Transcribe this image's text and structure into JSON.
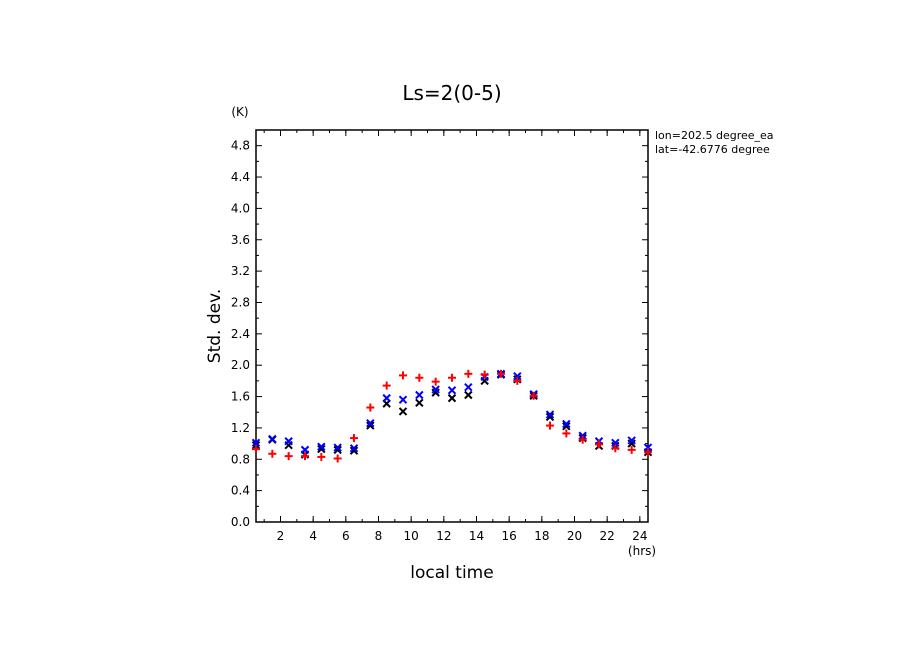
{
  "chart_data": {
    "type": "scatter",
    "title": "Ls=2(0-5)",
    "xlabel": "local time",
    "ylabel": "Std. dev.",
    "x_unit": "(hrs)",
    "y_unit": "(K)",
    "xlim": [
      0.5,
      24.5
    ],
    "ylim": [
      0.0,
      5.0
    ],
    "x_ticks": [
      2,
      4,
      6,
      8,
      10,
      12,
      14,
      16,
      18,
      20,
      22,
      24
    ],
    "y_ticks": [
      0.0,
      0.4,
      0.8,
      1.2,
      1.6,
      2.0,
      2.4,
      2.8,
      3.2,
      3.6,
      4.0,
      4.4,
      4.8
    ],
    "annotations": [
      "lon=202.5 degree_ea",
      "lat=-42.6776 degree"
    ],
    "series": [
      {
        "marker": "x",
        "color": "#000000",
        "x": [
          0.5,
          1.5,
          2.5,
          3.5,
          4.5,
          5.5,
          6.5,
          7.5,
          8.5,
          9.5,
          10.5,
          11.5,
          12.5,
          13.5,
          14.5,
          15.5,
          16.5,
          17.5,
          18.5,
          19.5,
          20.5,
          21.5,
          22.5,
          23.5,
          24.5
        ],
        "y": [
          0.98,
          1.05,
          0.98,
          0.86,
          0.93,
          0.92,
          0.91,
          1.23,
          1.51,
          1.41,
          1.52,
          1.65,
          1.58,
          1.62,
          1.8,
          1.88,
          1.82,
          1.61,
          1.34,
          1.22,
          1.07,
          0.97,
          0.97,
          1.0,
          0.89
        ]
      },
      {
        "marker": "x",
        "color": "#0000ff",
        "x": [
          0.5,
          1.5,
          2.5,
          3.5,
          4.5,
          5.5,
          6.5,
          7.5,
          8.5,
          9.5,
          10.5,
          11.5,
          12.5,
          13.5,
          14.5,
          15.5,
          16.5,
          17.5,
          18.5,
          19.5,
          20.5,
          21.5,
          22.5,
          23.5,
          24.5
        ],
        "y": [
          1.01,
          1.06,
          1.03,
          0.92,
          0.96,
          0.95,
          0.94,
          1.26,
          1.58,
          1.56,
          1.62,
          1.69,
          1.68,
          1.72,
          1.85,
          1.89,
          1.86,
          1.63,
          1.37,
          1.25,
          1.1,
          1.03,
          1.01,
          1.04,
          0.95
        ]
      },
      {
        "marker": "+",
        "color": "#ff0000",
        "x": [
          0.5,
          1.5,
          2.5,
          3.5,
          4.5,
          5.5,
          6.5,
          7.5,
          8.5,
          9.5,
          10.5,
          11.5,
          12.5,
          13.5,
          14.5,
          15.5,
          16.5,
          17.5,
          18.5,
          19.5,
          20.5,
          21.5,
          22.5,
          23.5,
          24.5
        ],
        "y": [
          0.93,
          0.87,
          0.84,
          0.84,
          0.83,
          0.81,
          1.07,
          1.46,
          1.74,
          1.87,
          1.84,
          1.79,
          1.84,
          1.89,
          1.88,
          1.89,
          1.8,
          1.61,
          1.23,
          1.13,
          1.05,
          0.99,
          0.94,
          0.92,
          0.89
        ]
      }
    ]
  }
}
